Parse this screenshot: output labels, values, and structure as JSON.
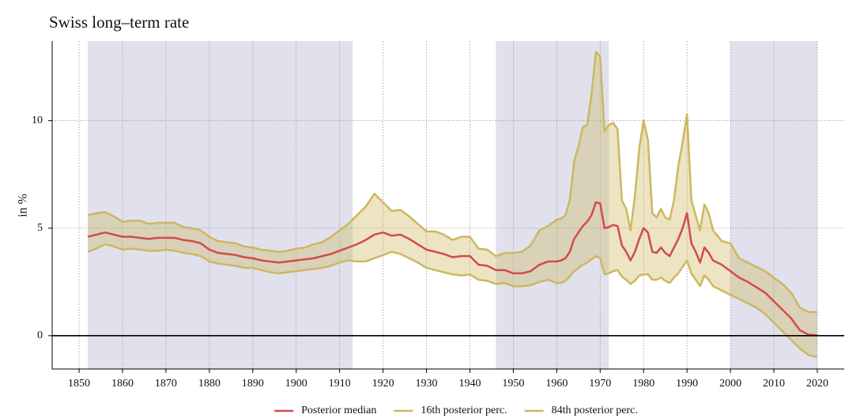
{
  "chart_data": {
    "type": "line",
    "title": "Swiss long–term rate",
    "y_label": "in %",
    "xlim": [
      1843.8,
      2026.2
    ],
    "ylim": [
      -1.55,
      13.7
    ],
    "xticks": [
      1850,
      1860,
      1870,
      1880,
      1890,
      1900,
      1910,
      1920,
      1930,
      1940,
      1950,
      1960,
      1970,
      1980,
      1990,
      2000,
      2010,
      2020
    ],
    "yticks": [
      0,
      5,
      10
    ],
    "grid": true,
    "zero_line": true,
    "legend": "bottom",
    "shaded_periods": [
      [
        1852,
        1913
      ],
      [
        1946,
        1972
      ],
      [
        2000,
        2020
      ]
    ],
    "shade_color": "#e1e1ee",
    "x": [
      1852,
      1854,
      1856,
      1858,
      1860,
      1862,
      1864,
      1866,
      1868,
      1870,
      1872,
      1874,
      1876,
      1878,
      1880,
      1882,
      1884,
      1886,
      1888,
      1890,
      1892,
      1894,
      1896,
      1898,
      1900,
      1902,
      1904,
      1906,
      1908,
      1910,
      1912,
      1914,
      1916,
      1918,
      1920,
      1922,
      1924,
      1926,
      1928,
      1930,
      1932,
      1934,
      1936,
      1938,
      1940,
      1942,
      1944,
      1946,
      1948,
      1950,
      1952,
      1954,
      1956,
      1958,
      1960,
      1961,
      1962,
      1963,
      1964,
      1965,
      1966,
      1967,
      1968,
      1969,
      1970,
      1971,
      1972,
      1973,
      1974,
      1975,
      1976,
      1977,
      1978,
      1979,
      1980,
      1981,
      1982,
      1983,
      1984,
      1985,
      1986,
      1987,
      1988,
      1989,
      1990,
      1991,
      1992,
      1993,
      1994,
      1995,
      1996,
      1998,
      2000,
      2002,
      2004,
      2006,
      2008,
      2010,
      2012,
      2014,
      2016,
      2018,
      2020
    ],
    "series": [
      {
        "name": "Posterior median",
        "color": "#d24a4f",
        "values": [
          4.6,
          4.7,
          4.8,
          4.7,
          4.6,
          4.6,
          4.55,
          4.5,
          4.55,
          4.55,
          4.55,
          4.45,
          4.4,
          4.3,
          4.0,
          3.85,
          3.8,
          3.75,
          3.65,
          3.6,
          3.5,
          3.45,
          3.4,
          3.45,
          3.5,
          3.55,
          3.6,
          3.7,
          3.8,
          3.95,
          4.1,
          4.25,
          4.45,
          4.7,
          4.8,
          4.65,
          4.7,
          4.5,
          4.25,
          4.0,
          3.9,
          3.8,
          3.65,
          3.7,
          3.7,
          3.3,
          3.25,
          3.05,
          3.05,
          2.9,
          2.9,
          3.0,
          3.3,
          3.45,
          3.45,
          3.5,
          3.6,
          3.9,
          4.5,
          4.8,
          5.1,
          5.3,
          5.6,
          6.2,
          6.15,
          5.0,
          5.05,
          5.15,
          5.1,
          4.2,
          3.9,
          3.5,
          3.9,
          4.5,
          5.0,
          4.8,
          3.9,
          3.85,
          4.1,
          3.85,
          3.7,
          4.1,
          4.5,
          5.0,
          5.7,
          4.3,
          3.9,
          3.4,
          4.1,
          3.85,
          3.5,
          3.3,
          3.0,
          2.7,
          2.5,
          2.25,
          2.0,
          1.6,
          1.2,
          0.8,
          0.25,
          0.05,
          0.02
        ]
      },
      {
        "name": "16th posterior perc.",
        "color": "#cdb760",
        "values": [
          3.9,
          4.05,
          4.25,
          4.15,
          4.0,
          4.05,
          4.0,
          3.95,
          3.95,
          4.0,
          3.95,
          3.85,
          3.8,
          3.7,
          3.45,
          3.35,
          3.3,
          3.25,
          3.15,
          3.15,
          3.05,
          2.95,
          2.9,
          2.95,
          3.0,
          3.05,
          3.1,
          3.15,
          3.25,
          3.4,
          3.5,
          3.45,
          3.45,
          3.6,
          3.75,
          3.9,
          3.8,
          3.6,
          3.4,
          3.15,
          3.05,
          2.95,
          2.85,
          2.8,
          2.85,
          2.6,
          2.55,
          2.4,
          2.45,
          2.3,
          2.3,
          2.35,
          2.5,
          2.6,
          2.45,
          2.45,
          2.55,
          2.75,
          3.0,
          3.15,
          3.3,
          3.4,
          3.55,
          3.7,
          3.6,
          2.85,
          2.9,
          3.0,
          3.05,
          2.75,
          2.6,
          2.4,
          2.55,
          2.8,
          2.85,
          2.85,
          2.6,
          2.6,
          2.7,
          2.55,
          2.45,
          2.7,
          2.9,
          3.2,
          3.5,
          2.9,
          2.6,
          2.3,
          2.8,
          2.6,
          2.3,
          2.1,
          1.9,
          1.7,
          1.5,
          1.3,
          1.0,
          0.6,
          0.2,
          -0.2,
          -0.6,
          -0.9,
          -1.0
        ]
      },
      {
        "name": "84th posterior perc.",
        "color": "#cdb760",
        "values": [
          5.6,
          5.7,
          5.75,
          5.55,
          5.3,
          5.35,
          5.35,
          5.2,
          5.25,
          5.25,
          5.25,
          5.05,
          5.0,
          4.9,
          4.6,
          4.4,
          4.35,
          4.3,
          4.15,
          4.1,
          4.0,
          3.95,
          3.9,
          3.95,
          4.05,
          4.1,
          4.25,
          4.35,
          4.6,
          4.9,
          5.2,
          5.6,
          6.0,
          6.6,
          6.2,
          5.8,
          5.85,
          5.55,
          5.2,
          4.85,
          4.85,
          4.7,
          4.45,
          4.6,
          4.6,
          4.05,
          4.0,
          3.7,
          3.85,
          3.85,
          3.9,
          4.2,
          4.9,
          5.1,
          5.4,
          5.45,
          5.6,
          6.3,
          8.1,
          8.8,
          9.7,
          9.8,
          11.2,
          13.2,
          13.0,
          9.5,
          9.8,
          9.9,
          9.6,
          6.3,
          5.9,
          4.9,
          6.5,
          8.7,
          10.0,
          9.1,
          5.7,
          5.5,
          5.9,
          5.5,
          5.4,
          6.3,
          7.9,
          9.0,
          10.3,
          6.3,
          5.6,
          4.9,
          6.1,
          5.7,
          4.9,
          4.4,
          4.3,
          3.6,
          3.4,
          3.2,
          3.0,
          2.7,
          2.4,
          2.0,
          1.3,
          1.1,
          1.1
        ]
      }
    ]
  }
}
